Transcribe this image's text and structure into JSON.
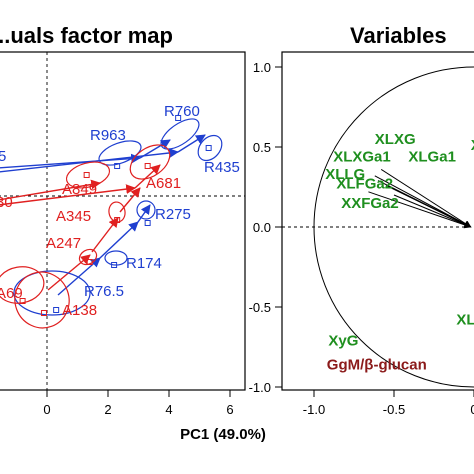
{
  "colors": {
    "blue": "#1f3fd0",
    "red": "#e02020",
    "green": "#1f8f1f",
    "darkred": "#8b1a1a",
    "black": "#000000"
  },
  "chart_data": [
    {
      "type": "scatter",
      "title": "...uals factor map",
      "xlabel": "PC1 (49.0%)",
      "x_ticks": [
        "0",
        "2",
        "4",
        "6"
      ],
      "xlim": [
        -1.5,
        6.5
      ],
      "ylim": [
        -5.5,
        4.0
      ],
      "labels": [
        {
          "text": "R760",
          "color": "blue"
        },
        {
          "text": "R963",
          "color": "blue"
        },
        {
          "text": "R435",
          "color": "blue"
        },
        {
          "text": "5",
          "color": "blue"
        },
        {
          "text": "A849",
          "color": "red"
        },
        {
          "text": "A681",
          "color": "red"
        },
        {
          "text": "30",
          "color": "red"
        },
        {
          "text": "A345",
          "color": "red"
        },
        {
          "text": "R275",
          "color": "blue"
        },
        {
          "text": "A247",
          "color": "red"
        },
        {
          "text": "R174",
          "color": "blue"
        },
        {
          "text": "R76.5",
          "color": "blue"
        },
        {
          "text": "A69",
          "color": "red"
        },
        {
          "text": "A138",
          "color": "red"
        }
      ],
      "points": [
        {
          "x": 4.3,
          "y": 2.6,
          "color": "blue"
        },
        {
          "x": 2.3,
          "y": 1.0,
          "color": "blue"
        },
        {
          "x": 5.3,
          "y": 1.6,
          "color": "blue"
        },
        {
          "x": 3.3,
          "y": 1.0,
          "color": "red"
        },
        {
          "x": 1.3,
          "y": 0.7,
          "color": "red"
        },
        {
          "x": 3.3,
          "y": -0.9,
          "color": "blue"
        },
        {
          "x": 2.3,
          "y": -0.8,
          "color": "red"
        },
        {
          "x": 1.4,
          "y": -2.2,
          "color": "red"
        },
        {
          "x": 2.2,
          "y": -2.3,
          "color": "blue"
        },
        {
          "x": 0.3,
          "y": -3.8,
          "color": "blue"
        },
        {
          "x": -0.1,
          "y": -3.9,
          "color": "red"
        },
        {
          "x": -0.8,
          "y": -3.5,
          "color": "red"
        }
      ]
    },
    {
      "type": "scatter",
      "title": "Variables",
      "y_ticks": [
        "1.0",
        "0.5",
        "0.0",
        "-0.5",
        "-1.0"
      ],
      "x_ticks": [
        "-1.0",
        "-0.5",
        "0"
      ],
      "xlim": [
        -1.1,
        0.9
      ],
      "ylim": [
        -1.1,
        1.1
      ],
      "variables": [
        {
          "text": "XLXG",
          "color": "green",
          "x": -0.62,
          "y": 0.52
        },
        {
          "text": "XLXGa1",
          "color": "green",
          "x": -0.88,
          "y": 0.41
        },
        {
          "text": "XLGa1",
          "color": "green",
          "x": -0.41,
          "y": 0.41
        },
        {
          "text": "XLLG",
          "color": "green",
          "x": -0.93,
          "y": 0.3
        },
        {
          "text": "XLFGa2",
          "color": "green",
          "x": -0.86,
          "y": 0.24
        },
        {
          "text": "XXFGa2",
          "color": "green",
          "x": -0.83,
          "y": 0.12
        },
        {
          "text": "XyG",
          "color": "green",
          "x": -0.91,
          "y": -0.74
        },
        {
          "text": "GgM/β-glucan",
          "color": "darkred",
          "x": -0.92,
          "y": -0.89
        },
        {
          "text": "X",
          "color": "green",
          "x": -0.02,
          "y": 0.48
        },
        {
          "text": "XL",
          "color": "green",
          "x": -0.11,
          "y": -0.61
        }
      ]
    }
  ]
}
